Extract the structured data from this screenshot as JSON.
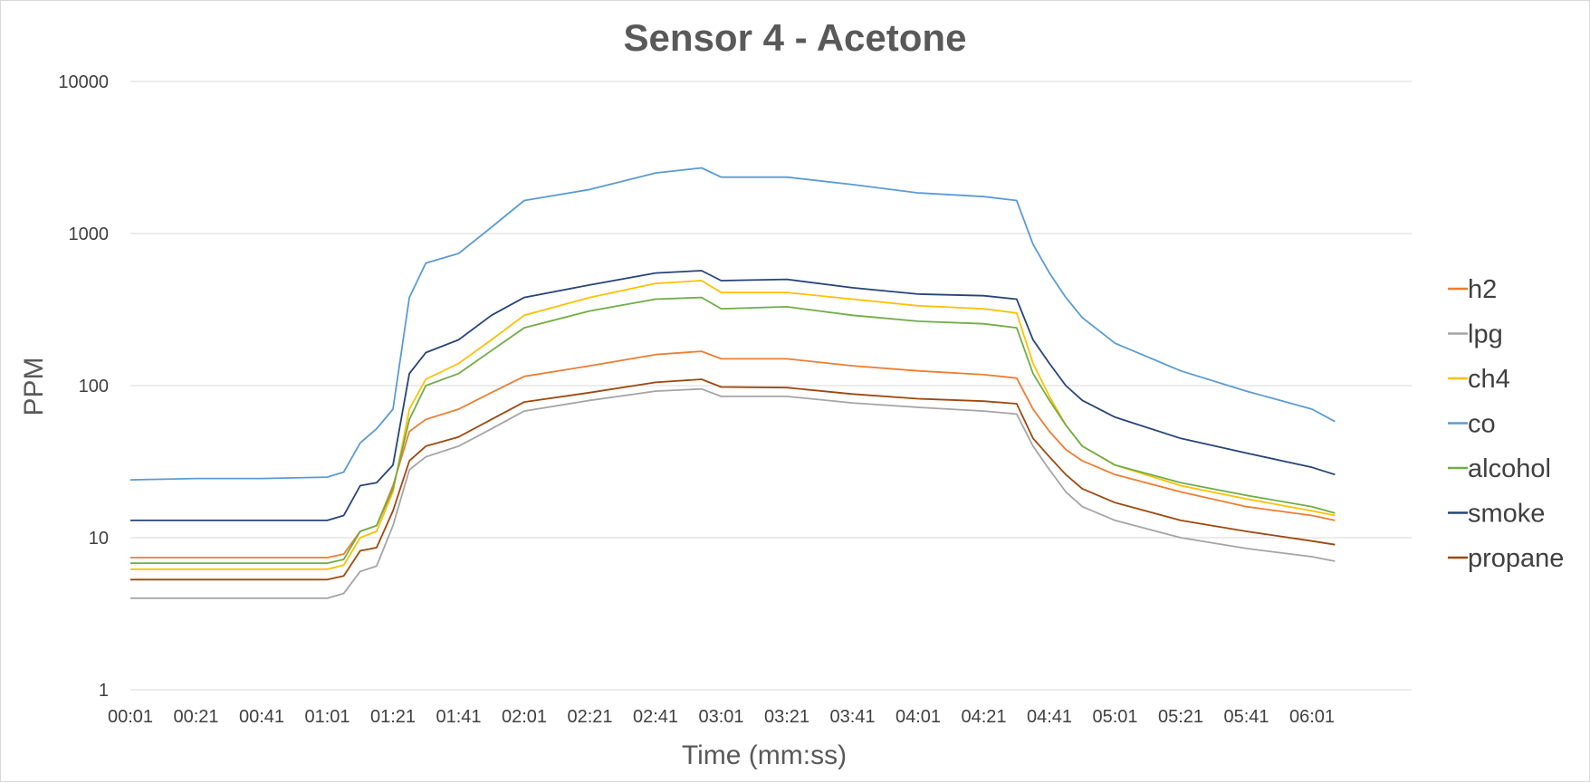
{
  "chart_data": {
    "type": "line",
    "title": "Sensor 4 - Acetone",
    "xlabel": "Time (mm:ss)",
    "ylabel": "PPM",
    "y_scale": "log",
    "ylim": [
      1,
      10000
    ],
    "y_ticks": [
      "1",
      "10",
      "100",
      "1000",
      "10000"
    ],
    "x_ticks": [
      "00:01",
      "00:21",
      "00:41",
      "01:01",
      "01:21",
      "01:41",
      "02:01",
      "02:21",
      "02:41",
      "03:01",
      "03:21",
      "03:41",
      "04:01",
      "04:21",
      "04:41",
      "05:01",
      "05:21",
      "05:41",
      "06:01"
    ],
    "xlim": [
      "00:01",
      "06:08"
    ],
    "grid": "horizontal",
    "legend_position": "right",
    "x": [
      "00:01",
      "00:21",
      "00:41",
      "01:01",
      "01:06",
      "01:11",
      "01:16",
      "01:21",
      "01:26",
      "01:31",
      "01:41",
      "01:51",
      "02:01",
      "02:21",
      "02:41",
      "02:55",
      "03:01",
      "03:21",
      "03:41",
      "04:01",
      "04:21",
      "04:31",
      "04:36",
      "04:41",
      "04:46",
      "04:51",
      "05:01",
      "05:21",
      "05:41",
      "06:01",
      "06:08"
    ],
    "series": [
      {
        "name": "h2",
        "color": "#ED7D31",
        "values": [
          7.4,
          7.4,
          7.4,
          7.4,
          7.8,
          11,
          12,
          22,
          50,
          60,
          70,
          90,
          115,
          135,
          160,
          168,
          150,
          150,
          135,
          125,
          118,
          112,
          70,
          50,
          38,
          32,
          26,
          20,
          16,
          14,
          13
        ]
      },
      {
        "name": "lpg",
        "color": "#A5A5A5",
        "values": [
          4.0,
          4.0,
          4.0,
          4.0,
          4.3,
          6.0,
          6.5,
          12,
          28,
          34,
          40,
          52,
          68,
          80,
          92,
          95,
          85,
          85,
          77,
          72,
          68,
          65,
          40,
          28,
          20,
          16,
          13,
          10,
          8.5,
          7.5,
          7
        ]
      },
      {
        "name": "ch4",
        "color": "#FFC000",
        "values": [
          6.2,
          6.2,
          6.2,
          6.2,
          6.6,
          10,
          11,
          20,
          70,
          110,
          140,
          200,
          290,
          380,
          470,
          490,
          410,
          410,
          370,
          335,
          320,
          300,
          140,
          85,
          55,
          40,
          30,
          22,
          18,
          15,
          14
        ]
      },
      {
        "name": "co",
        "color": "#5B9BD5",
        "values": [
          24,
          24.5,
          24.5,
          25,
          27,
          42,
          52,
          70,
          380,
          640,
          740,
          1100,
          1650,
          1950,
          2500,
          2700,
          2350,
          2350,
          2100,
          1850,
          1750,
          1650,
          850,
          550,
          380,
          280,
          190,
          125,
          92,
          70,
          58
        ]
      },
      {
        "name": "alcohol",
        "color": "#70AD47",
        "values": [
          6.8,
          6.8,
          6.8,
          6.8,
          7.2,
          11,
          12,
          21,
          60,
          100,
          120,
          170,
          240,
          310,
          370,
          380,
          320,
          330,
          290,
          265,
          255,
          240,
          120,
          80,
          55,
          40,
          30,
          23,
          19,
          16,
          14.5
        ]
      },
      {
        "name": "smoke",
        "color": "#264478",
        "values": [
          13,
          13,
          13,
          13,
          14,
          22,
          23,
          30,
          120,
          165,
          200,
          290,
          380,
          460,
          550,
          570,
          490,
          500,
          440,
          400,
          390,
          370,
          200,
          140,
          100,
          80,
          62,
          45,
          36,
          29,
          26
        ]
      },
      {
        "name": "propane",
        "color": "#9E480E",
        "values": [
          5.3,
          5.3,
          5.3,
          5.3,
          5.6,
          8.2,
          8.6,
          15,
          32,
          40,
          46,
          60,
          78,
          90,
          105,
          110,
          98,
          97,
          88,
          82,
          79,
          76,
          45,
          34,
          26,
          21,
          17,
          13,
          11,
          9.5,
          9
        ]
      }
    ]
  }
}
